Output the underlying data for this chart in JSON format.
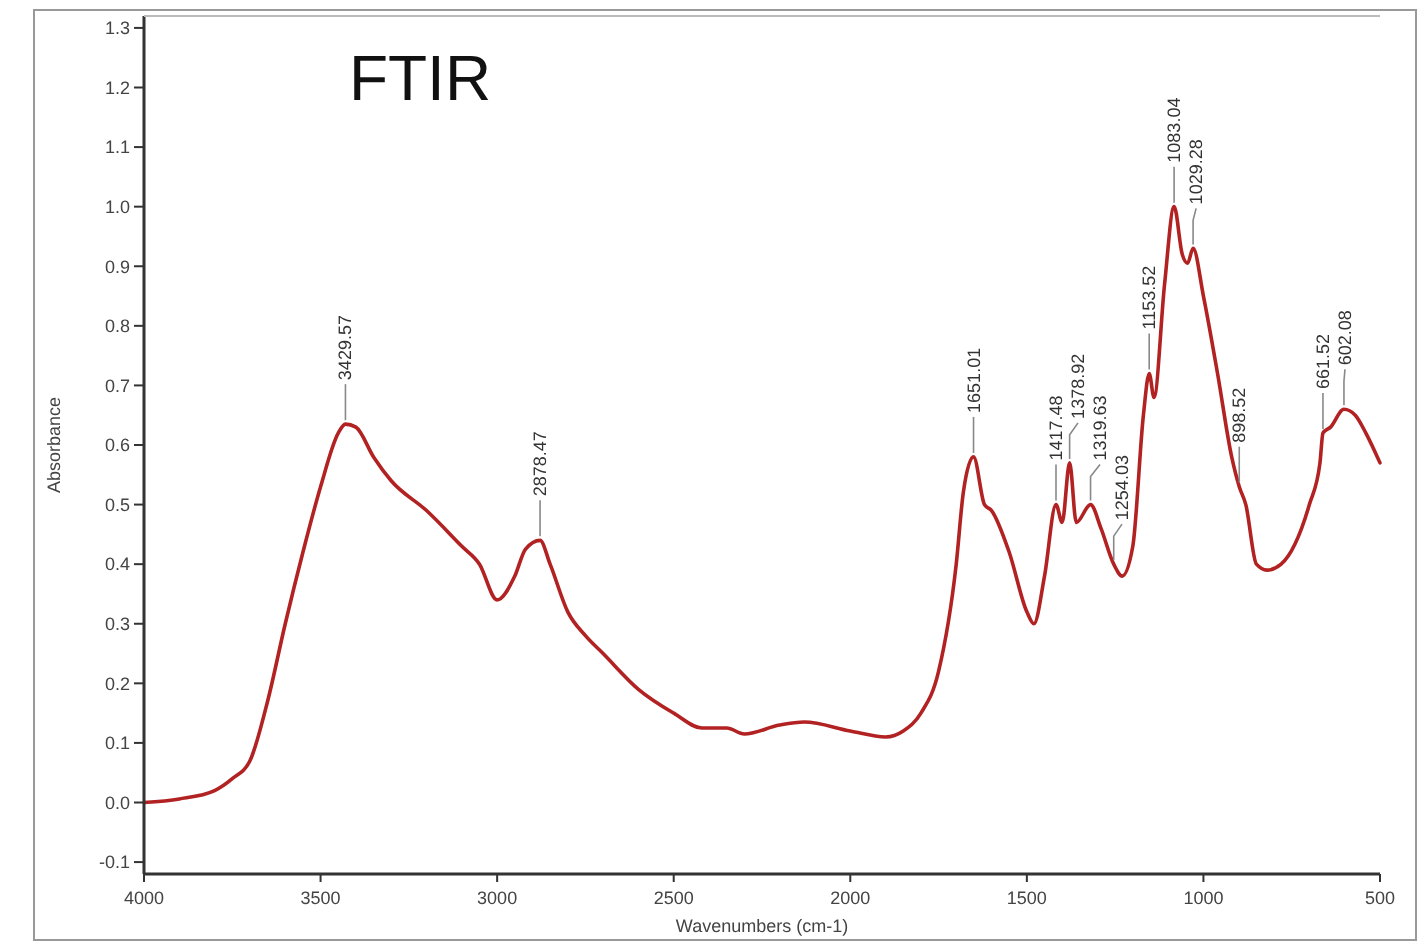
{
  "chart_data": {
    "type": "line",
    "title": "FTIR",
    "xlabel": "Wavenumbers (cm-1)",
    "ylabel": "Absorbance",
    "xlim": [
      4000,
      500
    ],
    "xticks": [
      4000,
      3500,
      3000,
      2500,
      2000,
      1500,
      1000,
      500
    ],
    "ylim": [
      -0.12,
      1.32
    ],
    "yticks": [
      -0.1,
      {
        "value": 0,
        "label": "0.0"
      },
      0.1,
      0.2,
      0.3,
      0.4,
      0.5,
      0.6,
      0.7,
      0.8,
      0.9,
      {
        "value": 1,
        "label": "1.0"
      },
      1.1,
      1.2,
      1.3
    ],
    "grid": false,
    "marker": "none",
    "line_style": "solid",
    "x": [
      4000,
      3900,
      3800,
      3750,
      3700,
      3650,
      3600,
      3550,
      3500,
      3450,
      3429.57,
      3400,
      3350,
      3300,
      3200,
      3100,
      3050,
      3000,
      2950,
      2920,
      2878.47,
      2850,
      2800,
      2750,
      2700,
      2600,
      2500,
      2420,
      2350,
      2300,
      2200,
      2130,
      2000,
      1900,
      1850,
      1800,
      1750,
      1700,
      1680,
      1651.01,
      1620,
      1600,
      1550,
      1500,
      1480,
      1450,
      1417.48,
      1400,
      1378.92,
      1360,
      1319.63,
      1290,
      1254.03,
      1230,
      1200,
      1170,
      1153.52,
      1140,
      1110,
      1083.04,
      1060,
      1045,
      1029.28,
      1000,
      960,
      920,
      898.52,
      880,
      850,
      820,
      780,
      700,
      670,
      661.52,
      640,
      602.08,
      570,
      540,
      500
    ],
    "series": [
      {
        "color": "#b22222",
        "values": [
          0.0,
          0.006,
          0.02,
          0.04,
          0.07,
          0.17,
          0.3,
          0.42,
          0.53,
          0.62,
          0.635,
          0.63,
          0.58,
          0.54,
          0.49,
          0.43,
          0.4,
          0.34,
          0.38,
          0.425,
          0.44,
          0.4,
          0.32,
          0.28,
          0.25,
          0.19,
          0.15,
          0.125,
          0.125,
          0.115,
          0.13,
          0.135,
          0.12,
          0.11,
          0.12,
          0.15,
          0.22,
          0.4,
          0.52,
          0.58,
          0.5,
          0.49,
          0.42,
          0.32,
          0.3,
          0.38,
          0.5,
          0.47,
          0.57,
          0.47,
          0.5,
          0.46,
          0.4,
          0.38,
          0.43,
          0.65,
          0.72,
          0.68,
          0.87,
          1.0,
          0.92,
          0.905,
          0.93,
          0.85,
          0.72,
          0.58,
          0.53,
          0.5,
          0.4,
          0.39,
          0.4,
          0.5,
          0.57,
          0.62,
          0.63,
          0.66,
          0.65,
          0.62,
          0.57
        ]
      }
    ],
    "annotations": [
      {
        "text": "3429.57",
        "x": 3429.57,
        "y": 0.635
      },
      {
        "text": "2878.47",
        "x": 2878.47,
        "y": 0.44
      },
      {
        "text": "1651.01",
        "x": 1651.01,
        "y": 0.58
      },
      {
        "text": "1417.48",
        "x": 1417.48,
        "y": 0.5
      },
      {
        "text": "1378.92",
        "x": 1378.92,
        "y": 0.57
      },
      {
        "text": "1319.63",
        "x": 1319.63,
        "y": 0.5
      },
      {
        "text": "1254.03",
        "x": 1254.03,
        "y": 0.4
      },
      {
        "text": "1153.52",
        "x": 1153.52,
        "y": 0.72
      },
      {
        "text": "1083.04",
        "x": 1083.04,
        "y": 1.0
      },
      {
        "text": "1029.28",
        "x": 1029.28,
        "y": 0.93
      },
      {
        "text": "898.52",
        "x": 898.52,
        "y": 0.53
      },
      {
        "text": "661.52",
        "x": 661.52,
        "y": 0.62
      },
      {
        "text": "602.08",
        "x": 602.08,
        "y": 0.66
      }
    ]
  }
}
